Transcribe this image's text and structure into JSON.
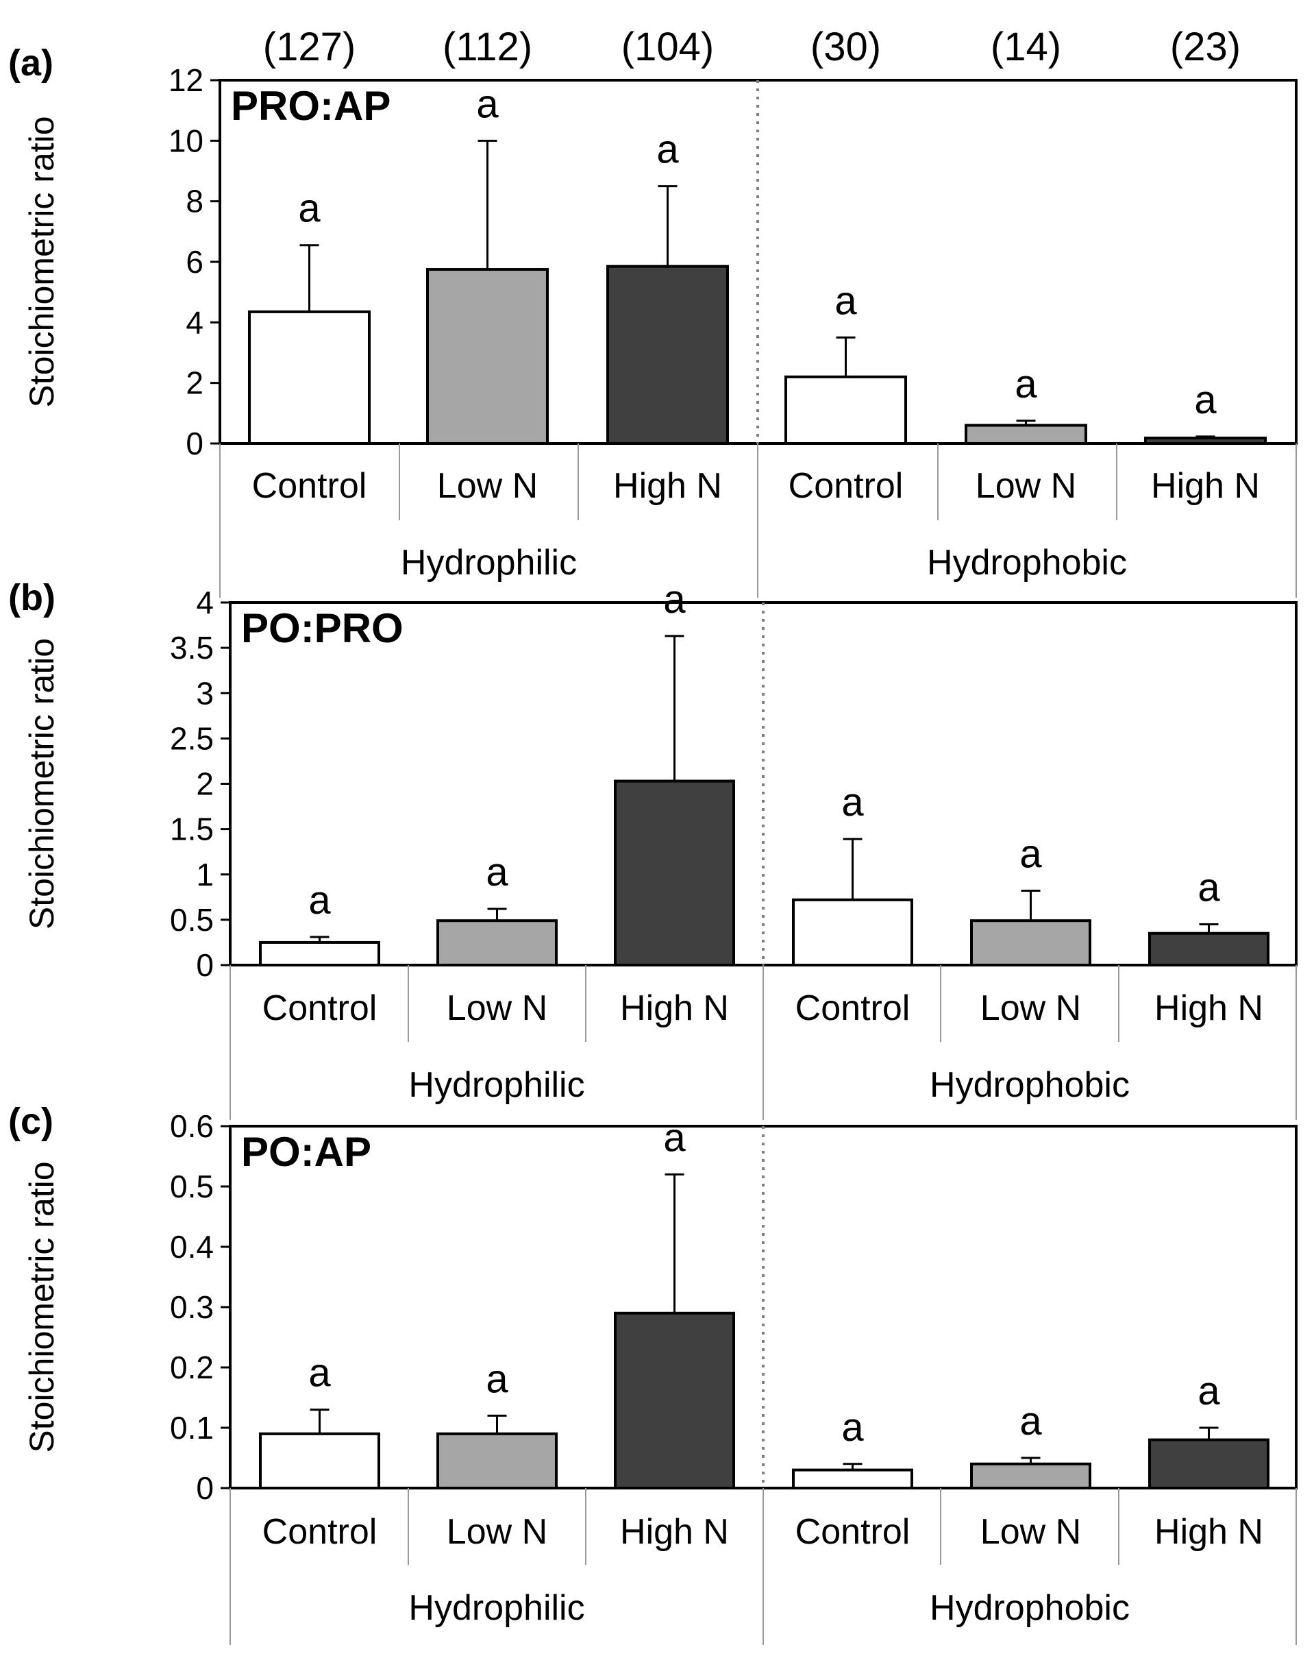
{
  "chart_data": [
    {
      "type": "bar",
      "panel_label": "(a)",
      "title": "PRO:AP",
      "ylabel": "Stoichiometric ratio",
      "ylim": [
        0,
        12
      ],
      "yticks": [
        "0",
        "2",
        "4",
        "6",
        "8",
        "10",
        "12"
      ],
      "sample_sizes": [
        "(127)",
        "(112)",
        "(104)",
        "(30)",
        "(14)",
        "(23)"
      ],
      "groups": [
        "Hydrophilic",
        "Hydrophobic"
      ],
      "categories": [
        "Control",
        "Low N",
        "High N",
        "Control",
        "Low N",
        "High N"
      ],
      "values": [
        4.35,
        5.75,
        5.85,
        2.2,
        0.6,
        0.18
      ],
      "errors": [
        2.2,
        4.25,
        2.65,
        1.3,
        0.15,
        0.05
      ],
      "significance": [
        "a",
        "a",
        "a",
        "a",
        "a",
        "a"
      ],
      "colors": [
        "#ffffff",
        "#a6a6a6",
        "#404040",
        "#ffffff",
        "#a6a6a6",
        "#404040"
      ]
    },
    {
      "type": "bar",
      "panel_label": "(b)",
      "title": "PO:PRO",
      "ylabel": "Stoichiometric ratio",
      "ylim": [
        0,
        4
      ],
      "yticks": [
        "0",
        "0.5",
        "1",
        "1.5",
        "2",
        "2.5",
        "3",
        "3.5",
        "4"
      ],
      "groups": [
        "Hydrophilic",
        "Hydrophobic"
      ],
      "categories": [
        "Control",
        "Low N",
        "High N",
        "Control",
        "Low N",
        "High N"
      ],
      "values": [
        0.25,
        0.49,
        2.03,
        0.72,
        0.49,
        0.35
      ],
      "errors": [
        0.06,
        0.13,
        1.6,
        0.67,
        0.33,
        0.1
      ],
      "significance": [
        "a",
        "a",
        "a",
        "a",
        "a",
        "a"
      ],
      "colors": [
        "#ffffff",
        "#a6a6a6",
        "#404040",
        "#ffffff",
        "#a6a6a6",
        "#404040"
      ]
    },
    {
      "type": "bar",
      "panel_label": "(c)",
      "title": "PO:AP",
      "ylabel": "Stoichiometric ratio",
      "ylim": [
        0,
        0.6
      ],
      "yticks": [
        "0",
        "0.1",
        "0.2",
        "0.3",
        "0.4",
        "0.5",
        "0.6"
      ],
      "groups": [
        "Hydrophilic",
        "Hydrophobic"
      ],
      "categories": [
        "Control",
        "Low N",
        "High N",
        "Control",
        "Low N",
        "High N"
      ],
      "values": [
        0.09,
        0.09,
        0.29,
        0.03,
        0.04,
        0.08
      ],
      "errors": [
        0.04,
        0.03,
        0.23,
        0.01,
        0.01,
        0.02
      ],
      "significance": [
        "a",
        "a",
        "a",
        "a",
        "a",
        "a"
      ],
      "colors": [
        "#ffffff",
        "#a6a6a6",
        "#404040",
        "#ffffff",
        "#a6a6a6",
        "#404040"
      ]
    }
  ]
}
